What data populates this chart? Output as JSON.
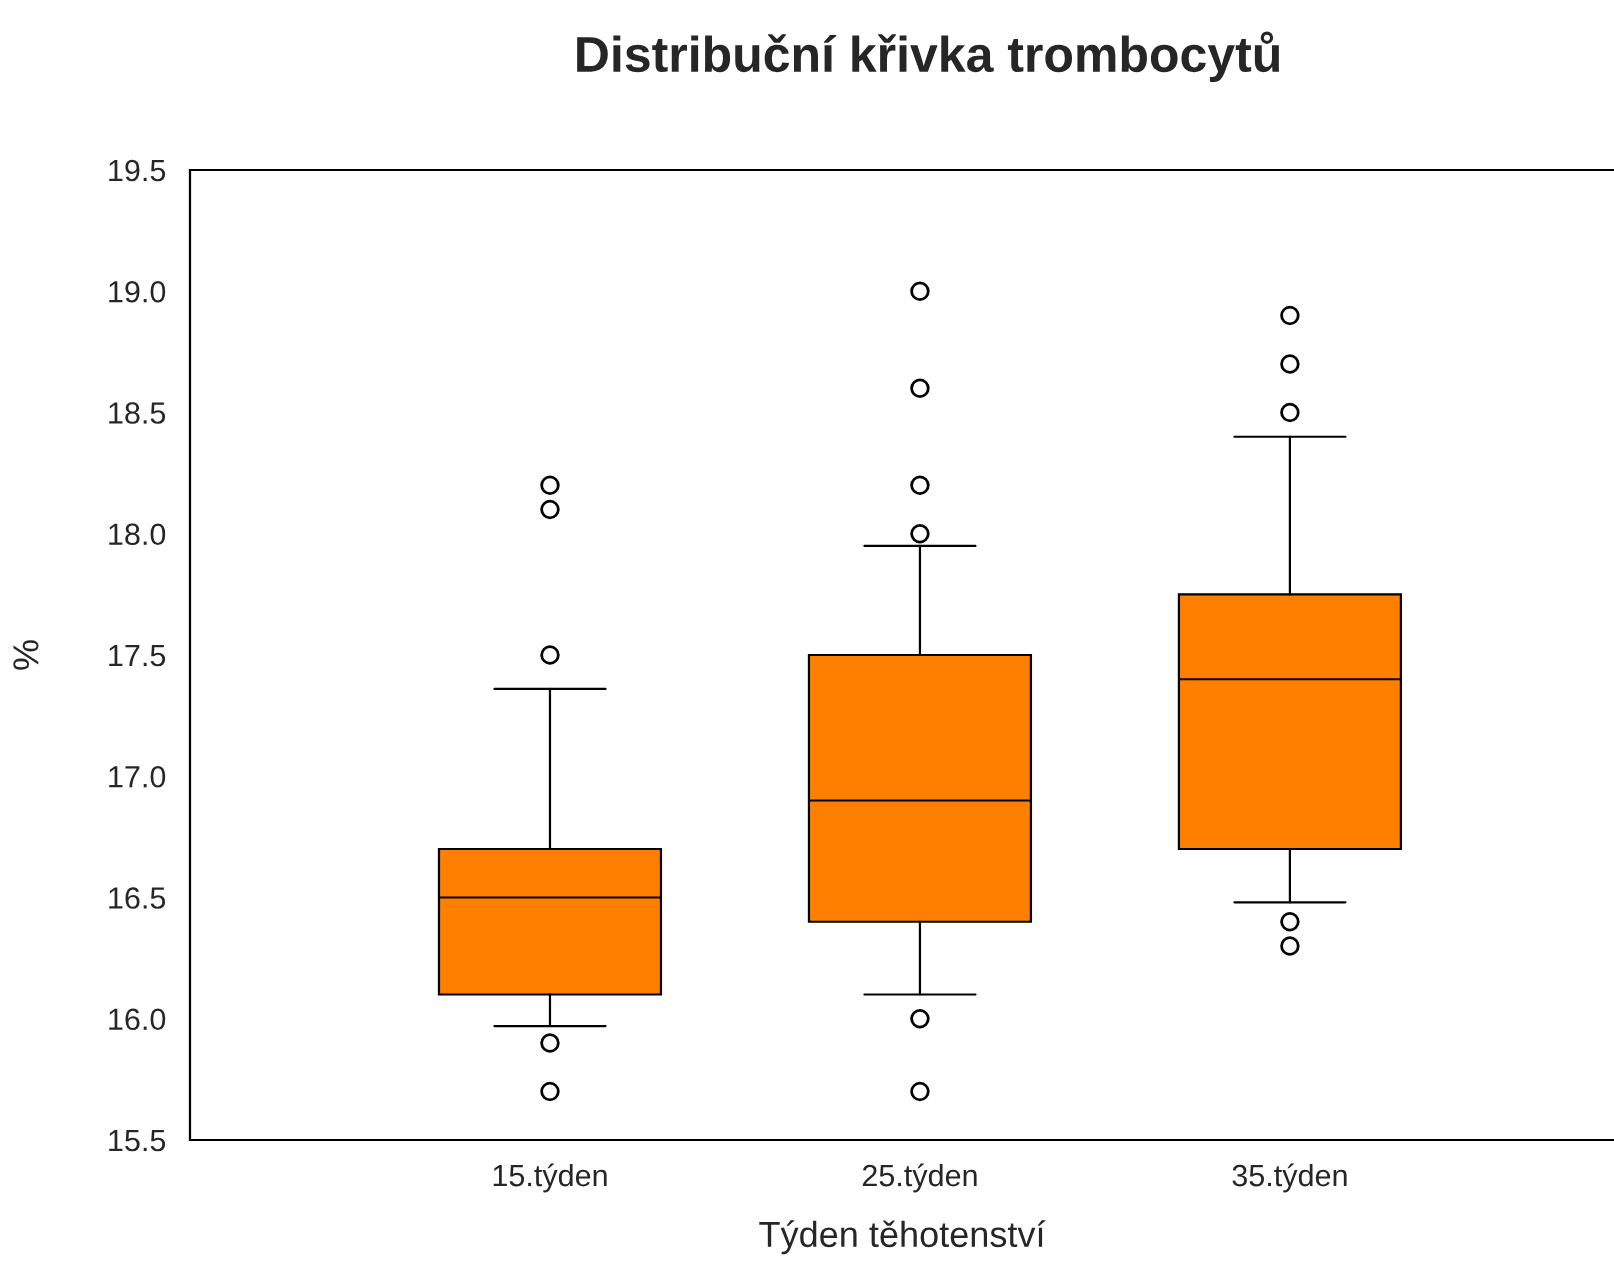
{
  "chart_data": {
    "type": "box",
    "title": "Distribuční křivka trombocytů",
    "xlabel": "Týden těhotenství",
    "ylabel": "%",
    "categories": [
      "15.týden",
      "25.týden",
      "35.týden"
    ],
    "boxes": [
      {
        "low": 15.97,
        "q1": 16.1,
        "median": 16.5,
        "q3": 16.7,
        "high": 17.36,
        "outliers": [
          18.2,
          18.1,
          17.5,
          15.9,
          15.7
        ]
      },
      {
        "low": 16.1,
        "q1": 16.4,
        "median": 16.9,
        "q3": 17.5,
        "high": 17.95,
        "outliers": [
          19.0,
          18.6,
          18.2,
          18.0,
          16.0,
          15.7
        ]
      },
      {
        "low": 16.48,
        "q1": 16.7,
        "median": 17.4,
        "q3": 17.75,
        "high": 18.4,
        "outliers": [
          18.9,
          18.7,
          18.5,
          16.4,
          16.3
        ]
      }
    ],
    "color": "#ff8000",
    "ylim": [
      15.5,
      19.5
    ],
    "yticks": [
      15.5,
      {
        "value": 16,
        "label": "16.0"
      },
      16.5,
      {
        "value": 17,
        "label": "17.0"
      },
      17.5,
      {
        "value": 18,
        "label": "18.0"
      },
      18.5,
      {
        "value": 19,
        "label": "19.0"
      },
      19.5
    ],
    "grid": false
  }
}
